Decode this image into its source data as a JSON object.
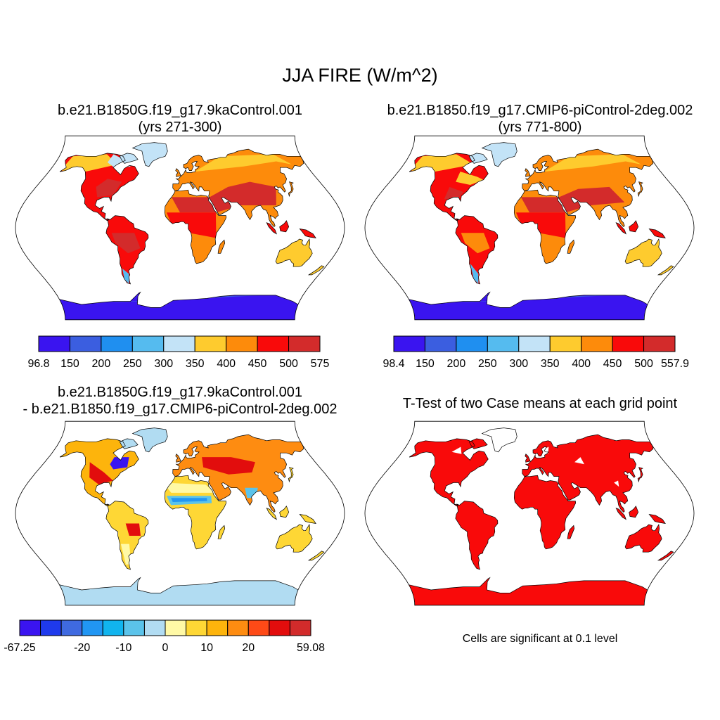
{
  "title": "JJA FIRE (W/m^2)",
  "chart_data": [
    {
      "type": "heatmap",
      "panel": "case1",
      "title_line1": "b.e21.B1850G.f19_g17.9kaControl.001",
      "title_line2": "(yrs 271-300)",
      "colorbar": {
        "colors": [
          "#3a14f0",
          "#3b5ee0",
          "#1f8ff0",
          "#55bbef",
          "#c3e3f7",
          "#fecb2e",
          "#fd8b0b",
          "#f90a0a",
          "#d32b2b"
        ],
        "labels": [
          "96.8",
          "150",
          "200",
          "250",
          "300",
          "350",
          "400",
          "450",
          "500",
          "575"
        ]
      }
    },
    {
      "type": "heatmap",
      "panel": "case2",
      "title_line1": "b.e21.B1850.f19_g17.CMIP6-piControl-2deg.002",
      "title_line2": "(yrs 771-800)",
      "colorbar": {
        "colors": [
          "#3a14f0",
          "#3b5ee0",
          "#1f8ff0",
          "#55bbef",
          "#c3e3f7",
          "#fecb2e",
          "#fd8b0b",
          "#f90a0a",
          "#d32b2b"
        ],
        "labels": [
          "98.4",
          "150",
          "200",
          "250",
          "300",
          "350",
          "400",
          "450",
          "500",
          "557.9"
        ]
      }
    },
    {
      "type": "heatmap",
      "panel": "difference",
      "title_line1": "b.e21.B1850G.f19_g17.9kaControl.001",
      "title_line2": "- b.e21.B1850.f19_g17.CMIP6-piControl-2deg.002",
      "colorbar": {
        "colors": [
          "#3a14f0",
          "#1f3aec",
          "#3f6ae0",
          "#2196f3",
          "#11b4ee",
          "#5bc3ea",
          "#b1dcf2",
          "#fff9a6",
          "#fed735",
          "#fdb40c",
          "#fe8c11",
          "#fe4a17",
          "#e20d0d",
          "#d22b2b"
        ],
        "labels": [
          "-67.25",
          "-20",
          "-10",
          "0",
          "10",
          "20",
          "59.08"
        ]
      }
    },
    {
      "type": "heatmap",
      "panel": "ttest",
      "title_line1": "T-Test of two Case means at each grid point",
      "note": "Cells are significant at 0.1 level",
      "significant_color": "#f50a0a"
    }
  ]
}
